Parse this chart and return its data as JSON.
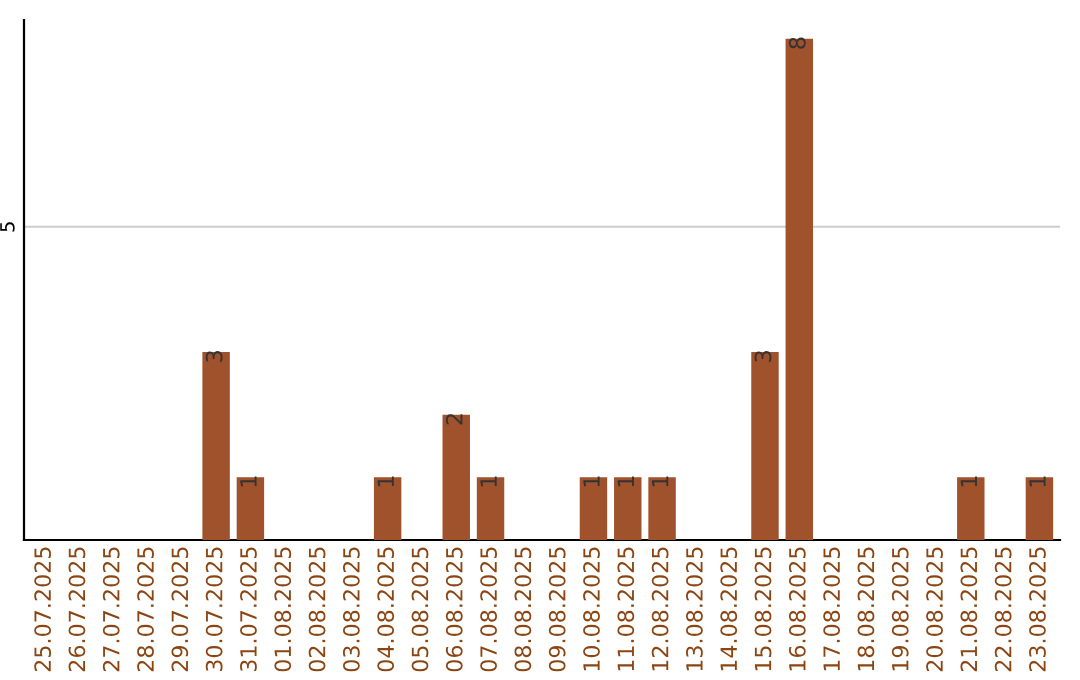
{
  "chart_data": {
    "type": "bar",
    "categories": [
      "25.07.2025",
      "26.07.2025",
      "27.07.2025",
      "28.07.2025",
      "29.07.2025",
      "30.07.2025",
      "31.07.2025",
      "01.08.2025",
      "02.08.2025",
      "03.08.2025",
      "04.08.2025",
      "05.08.2025",
      "06.08.2025",
      "07.08.2025",
      "08.08.2025",
      "09.08.2025",
      "10.08.2025",
      "11.08.2025",
      "12.08.2025",
      "13.08.2025",
      "14.08.2025",
      "15.08.2025",
      "16.08.2025",
      "17.08.2025",
      "18.08.2025",
      "19.08.2025",
      "20.08.2025",
      "21.08.2025",
      "22.08.2025",
      "23.08.2025"
    ],
    "values": [
      0,
      0,
      0,
      0,
      0,
      3,
      1,
      0,
      0,
      0,
      1,
      0,
      2,
      1,
      0,
      0,
      1,
      1,
      1,
      0,
      0,
      3,
      8,
      0,
      0,
      0,
      0,
      1,
      0,
      1
    ],
    "value_labels": [
      null,
      null,
      null,
      null,
      null,
      "3",
      "1",
      null,
      null,
      null,
      "1",
      null,
      "2",
      "1",
      null,
      null,
      "1",
      "1",
      "1",
      null,
      null,
      "3",
      "8",
      null,
      null,
      null,
      null,
      "1",
      null,
      "1"
    ],
    "color": "#a0522d",
    "ylim": [
      0,
      8.3
    ],
    "yticks": [
      5
    ],
    "grid": "y"
  }
}
